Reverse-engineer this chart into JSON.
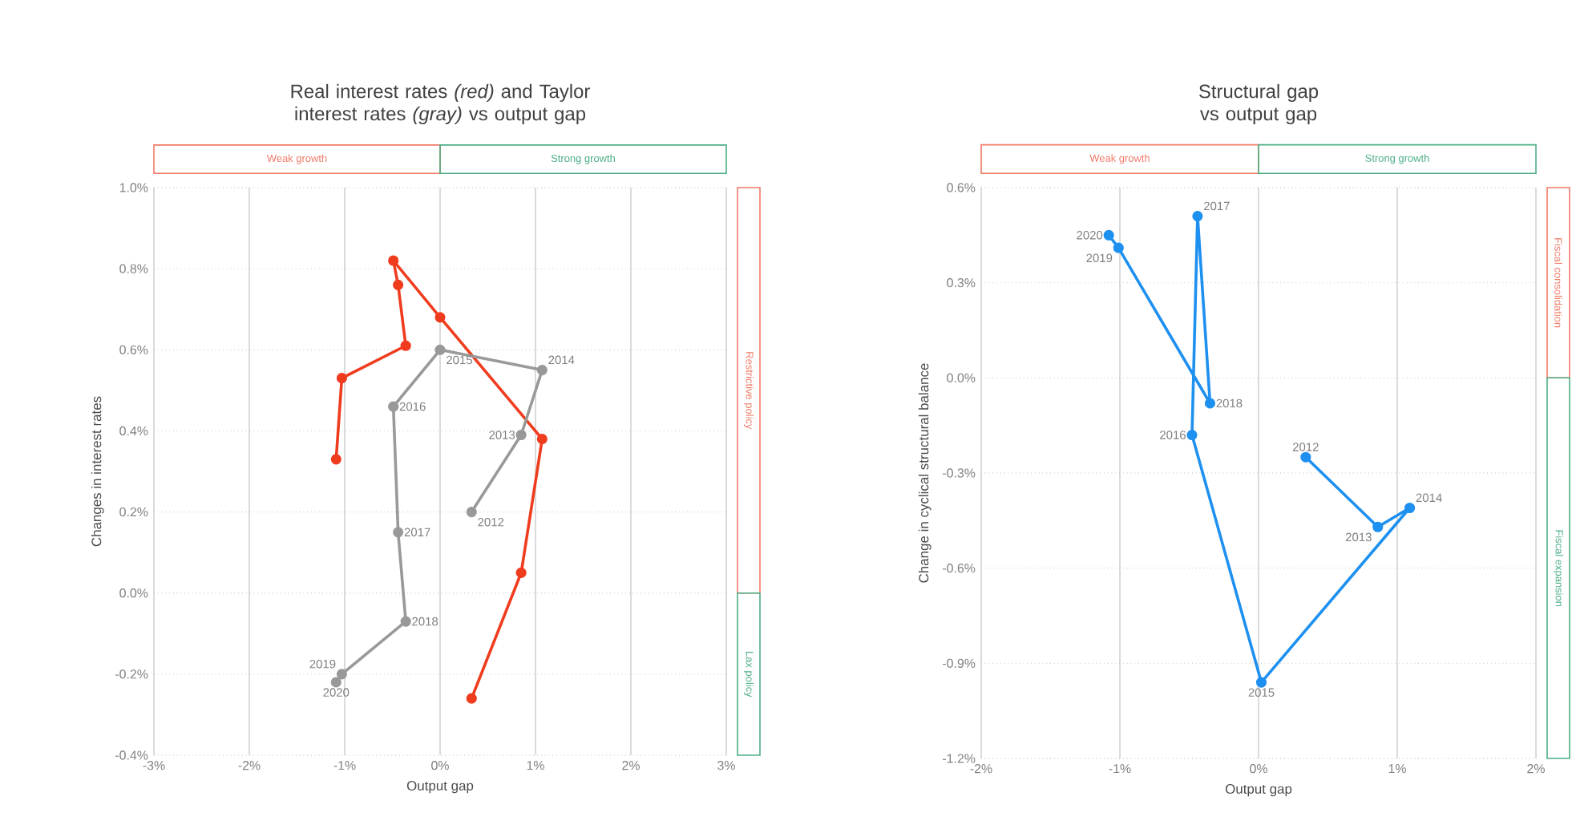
{
  "chart_data": [
    {
      "type": "line",
      "title": "Real interest rates *(red)* and Taylor interest rates *(gray)* vs output gap",
      "xlabel": "Output gap",
      "ylabel": "Changes in interest rates",
      "marker": "circle",
      "grid": true,
      "x": [
        0.33,
        0.85,
        1.07,
        0.0,
        -0.49,
        -0.44,
        -0.36,
        -1.03,
        -1.09
      ],
      "series": [
        {
          "color": "#f03c1e",
          "values": [
            -0.26,
            0.05,
            0.38,
            0.68,
            0.82,
            0.76,
            0.61,
            0.53,
            0.33
          ]
        },
        {
          "color": "#999999",
          "values": [
            0.2,
            0.39,
            0.55,
            0.6,
            0.46,
            0.15,
            -0.07,
            -0.2,
            -0.22
          ]
        }
      ],
      "xlim": [
        -3,
        3
      ],
      "ylim": [
        -0.4,
        1.0
      ],
      "xticks": [
        {
          "value": -3,
          "label": "-3%"
        },
        {
          "value": -2,
          "label": "-2%"
        },
        {
          "value": -1,
          "label": "-1%"
        },
        {
          "value": 0,
          "label": "0%"
        },
        {
          "value": 1,
          "label": "1%"
        },
        {
          "value": 2,
          "label": "2%"
        },
        {
          "value": 3,
          "label": "3%"
        }
      ],
      "yticks": [
        {
          "value": -0.4,
          "label": "-0.4%"
        },
        {
          "value": -0.2,
          "label": "-0.2%"
        },
        {
          "value": 0,
          "label": "0.0%"
        },
        {
          "value": 0.2,
          "label": "0.2%"
        },
        {
          "value": 0.4,
          "label": "0.4%"
        },
        {
          "value": 0.6,
          "label": "0.6%"
        },
        {
          "value": 0.8,
          "label": "0.8%"
        },
        {
          "value": 1.0,
          "label": "1.0%"
        }
      ],
      "annotations": [
        "Weak growth",
        "Strong growth",
        "Restrictive policy",
        "Lax policy",
        {
          "text": "2012",
          "x": 0.33,
          "y": 0.2
        },
        {
          "text": "2013",
          "x": 0.85,
          "y": 0.39
        },
        {
          "text": "2014",
          "x": 1.07,
          "y": 0.55
        },
        {
          "text": "2015",
          "x": 0.0,
          "y": 0.6
        },
        {
          "text": "2016",
          "x": -0.49,
          "y": 0.46
        },
        {
          "text": "2017",
          "x": -0.44,
          "y": 0.15
        },
        {
          "text": "2018",
          "x": -0.36,
          "y": -0.07
        },
        {
          "text": "2019",
          "x": -1.03,
          "y": -0.2
        },
        {
          "text": "2020",
          "x": -1.09,
          "y": -0.22
        }
      ]
    },
    {
      "type": "line",
      "title": "Structural gap vs output gap",
      "xlabel": "Output gap",
      "ylabel": "Change in cyclical structural balance",
      "marker": "circle",
      "grid": true,
      "x": [
        0.34,
        0.86,
        1.09,
        0.02,
        -0.48,
        -0.44,
        -0.35,
        -1.01,
        -1.08
      ],
      "series": [
        {
          "color": "#1e90f0",
          "values": [
            -0.25,
            -0.47,
            -0.41,
            -0.96,
            -0.18,
            0.51,
            -0.08,
            0.41,
            0.45
          ]
        }
      ],
      "xlim": [
        -2,
        2
      ],
      "ylim": [
        -1.2,
        0.6
      ],
      "xticks": [
        {
          "value": -2,
          "label": "-2%"
        },
        {
          "value": -1,
          "label": "-1%"
        },
        {
          "value": 0,
          "label": "0%"
        },
        {
          "value": 1,
          "label": "1%"
        },
        {
          "value": 2,
          "label": "2%"
        }
      ],
      "yticks": [
        {
          "value": -1.2,
          "label": "-1.2%"
        },
        {
          "value": -0.9,
          "label": "-0.9%"
        },
        {
          "value": -0.6,
          "label": "-0.6%"
        },
        {
          "value": -0.3,
          "label": "-0.3%"
        },
        {
          "value": 0,
          "label": "0.0%"
        },
        {
          "value": 0.3,
          "label": "0.3%"
        },
        {
          "value": 0.6,
          "label": "0.6%"
        }
      ],
      "annotations": [
        "Weak growth",
        "Strong growth",
        "Fiscal consolidation",
        "Fiscal expansion",
        {
          "text": "2012",
          "x": 0.34,
          "y": -0.25
        },
        {
          "text": "2013",
          "x": 0.86,
          "y": -0.47
        },
        {
          "text": "2014",
          "x": 1.09,
          "y": -0.41
        },
        {
          "text": "2015",
          "x": 0.02,
          "y": -0.96
        },
        {
          "text": "2016",
          "x": -0.48,
          "y": -0.18
        },
        {
          "text": "2017",
          "x": -0.44,
          "y": 0.51
        },
        {
          "text": "2018",
          "x": -0.35,
          "y": -0.08
        },
        {
          "text": "2019",
          "x": -1.01,
          "y": 0.41
        },
        {
          "text": "2020",
          "x": -1.08,
          "y": 0.45
        }
      ]
    }
  ]
}
